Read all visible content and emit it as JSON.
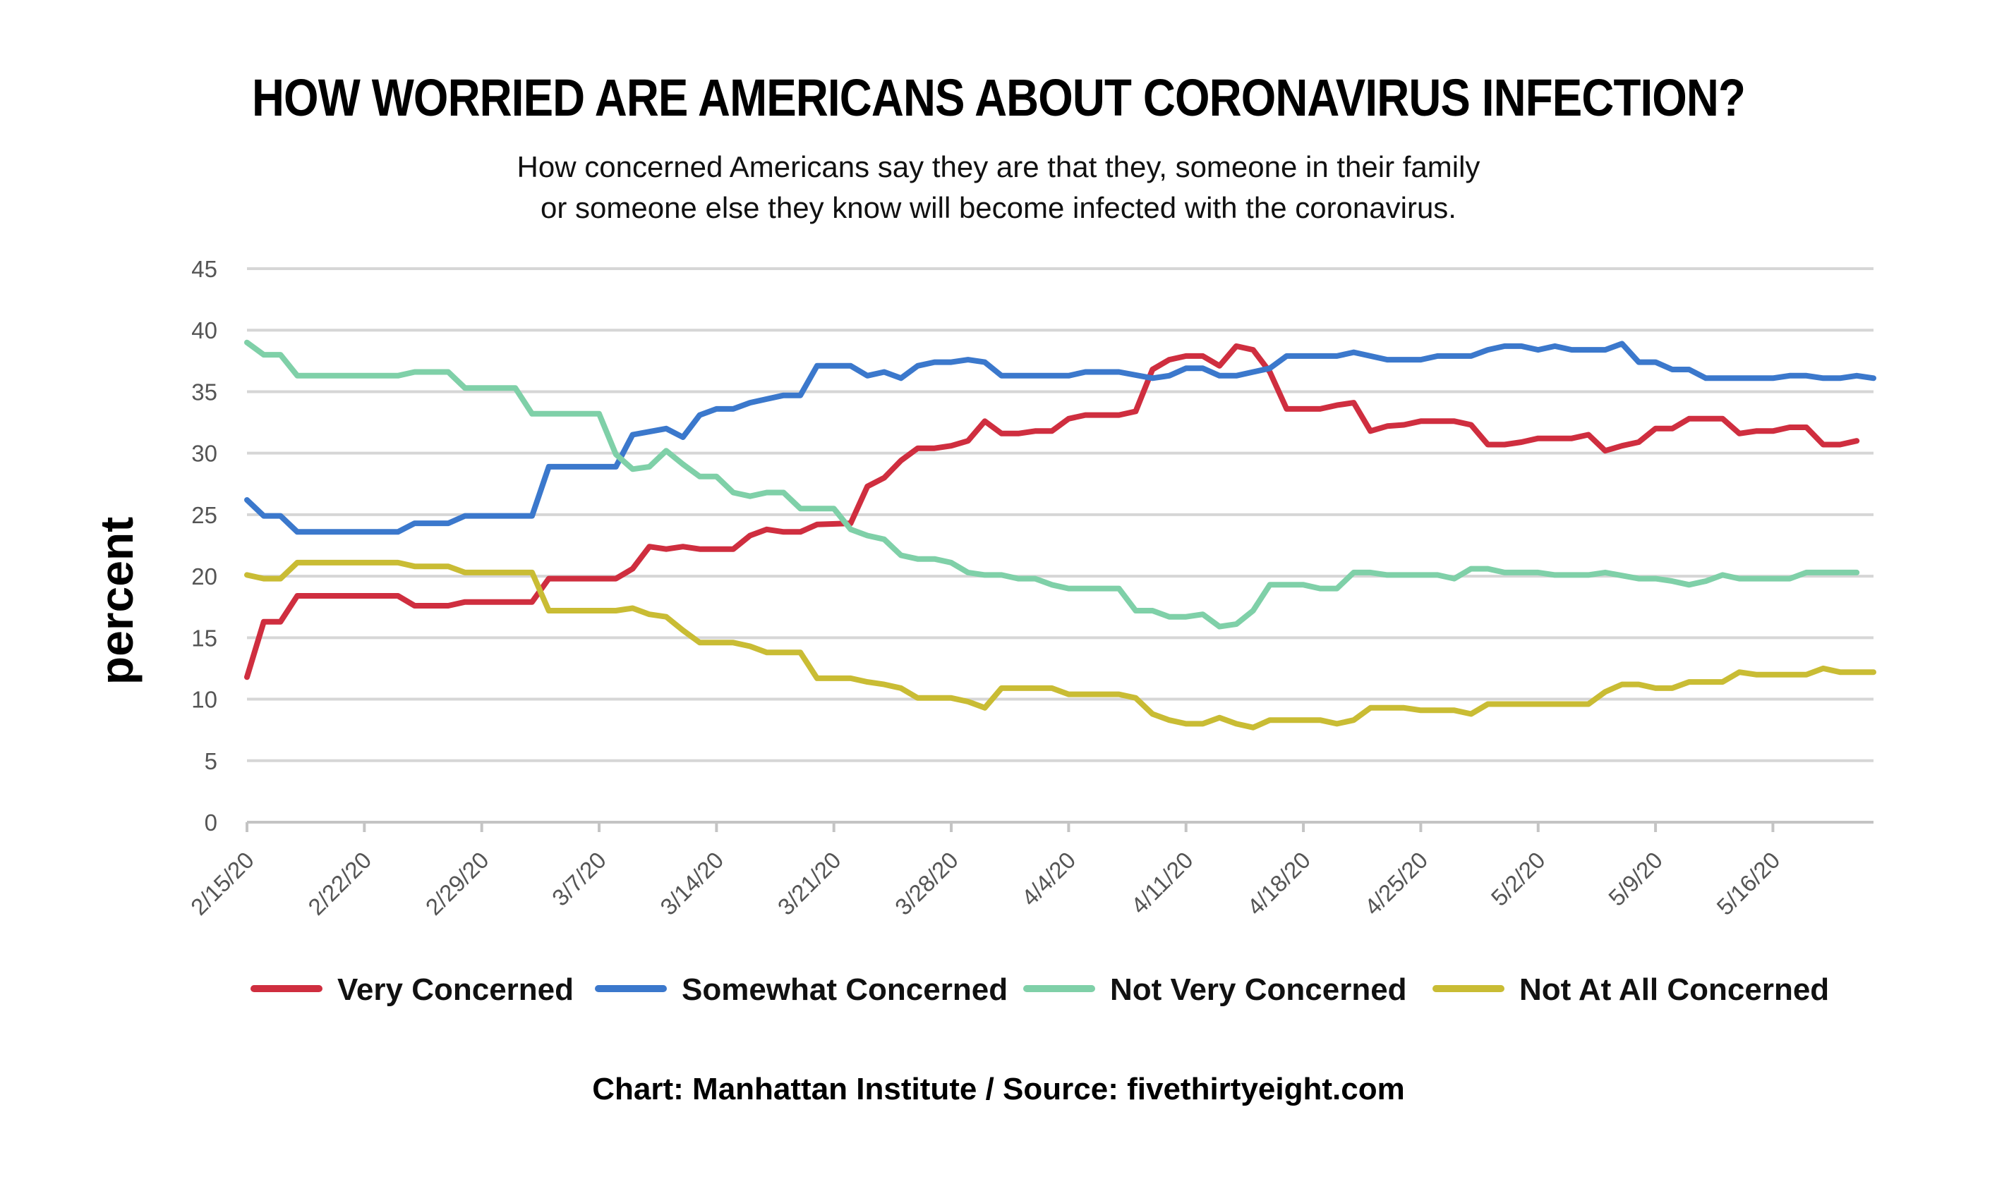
{
  "chart_data": {
    "type": "line",
    "title": "HOW WORRIED ARE AMERICANS ABOUT CORONAVIRUS INFECTION?",
    "subtitle_lines": [
      "How concerned Americans say they are that they, someone in their family",
      "or someone else they know will become infected with the coronavirus."
    ],
    "ylabel": "percent",
    "xlabel": "",
    "ylim": [
      0,
      45
    ],
    "yticks": [
      0,
      5,
      10,
      15,
      20,
      25,
      30,
      35,
      40,
      45
    ],
    "x_start": "2/15/20",
    "x_end": "5/22/20",
    "x_tick_labels": [
      "2/15/20",
      "2/22/20",
      "2/29/20",
      "3/7/20",
      "3/14/20",
      "3/21/20",
      "3/28/20",
      "4/4/20",
      "4/11/20",
      "4/18/20",
      "4/25/20",
      "5/2/20",
      "5/9/20",
      "5/16/20"
    ],
    "grid": true,
    "legend_position": "bottom",
    "source": "Chart: Manhattan Institute  /  Source: fivethirtyeight.com",
    "series": [
      {
        "name": "Very Concerned",
        "color": "#cf2e3f",
        "points": [
          [
            "2/15/20",
            11.8
          ],
          [
            "2/16/20",
            16.3
          ],
          [
            "2/17/20",
            16.3
          ],
          [
            "2/18/20",
            18.4
          ],
          [
            "2/19/20",
            18.4
          ],
          [
            "2/24/20",
            18.4
          ],
          [
            "2/25/20",
            17.6
          ],
          [
            "2/27/20",
            17.6
          ],
          [
            "2/28/20",
            17.9
          ],
          [
            "3/3/20",
            17.9
          ],
          [
            "3/4/20",
            19.8
          ],
          [
            "3/8/20",
            19.8
          ],
          [
            "3/9/20",
            20.6
          ],
          [
            "3/10/20",
            22.4
          ],
          [
            "3/11/20",
            22.2
          ],
          [
            "3/12/20",
            22.4
          ],
          [
            "3/13/20",
            22.2
          ],
          [
            "3/15/20",
            22.2
          ],
          [
            "3/16/20",
            23.3
          ],
          [
            "3/17/20",
            23.8
          ],
          [
            "3/18/20",
            23.6
          ],
          [
            "3/19/20",
            23.6
          ],
          [
            "3/20/20",
            24.2
          ],
          [
            "3/22/20",
            24.3
          ],
          [
            "3/23/20",
            27.3
          ],
          [
            "3/24/20",
            28.0
          ],
          [
            "3/25/20",
            29.4
          ],
          [
            "3/26/20",
            30.4
          ],
          [
            "3/27/20",
            30.4
          ],
          [
            "3/28/20",
            30.6
          ],
          [
            "3/29/20",
            31.0
          ],
          [
            "3/30/20",
            32.6
          ],
          [
            "3/31/20",
            31.6
          ],
          [
            "4/1/20",
            31.6
          ],
          [
            "4/2/20",
            31.8
          ],
          [
            "4/3/20",
            31.8
          ],
          [
            "4/4/20",
            32.8
          ],
          [
            "4/5/20",
            33.1
          ],
          [
            "4/7/20",
            33.1
          ],
          [
            "4/8/20",
            33.4
          ],
          [
            "4/9/20",
            36.8
          ],
          [
            "4/10/20",
            37.6
          ],
          [
            "4/11/20",
            37.9
          ],
          [
            "4/12/20",
            37.9
          ],
          [
            "4/13/20",
            37.1
          ],
          [
            "4/14/20",
            38.7
          ],
          [
            "4/15/20",
            38.4
          ],
          [
            "4/16/20",
            36.6
          ],
          [
            "4/17/20",
            33.6
          ],
          [
            "4/19/20",
            33.6
          ],
          [
            "4/20/20",
            33.9
          ],
          [
            "4/21/20",
            34.1
          ],
          [
            "4/22/20",
            31.8
          ],
          [
            "4/23/20",
            32.2
          ],
          [
            "4/24/20",
            32.3
          ],
          [
            "4/25/20",
            32.6
          ],
          [
            "4/27/20",
            32.6
          ],
          [
            "4/28/20",
            32.3
          ],
          [
            "4/29/20",
            30.7
          ],
          [
            "4/30/20",
            30.7
          ],
          [
            "5/1/20",
            30.9
          ],
          [
            "5/2/20",
            31.2
          ],
          [
            "5/4/20",
            31.2
          ],
          [
            "5/5/20",
            31.5
          ],
          [
            "5/6/20",
            30.2
          ],
          [
            "5/7/20",
            30.6
          ],
          [
            "5/8/20",
            30.9
          ],
          [
            "5/9/20",
            32.0
          ],
          [
            "5/10/20",
            32.0
          ],
          [
            "5/11/20",
            32.8
          ],
          [
            "5/13/20",
            32.8
          ],
          [
            "5/14/20",
            31.6
          ],
          [
            "5/15/20",
            31.8
          ],
          [
            "5/16/20",
            31.8
          ],
          [
            "5/17/20",
            32.1
          ],
          [
            "5/18/20",
            32.1
          ],
          [
            "5/19/20",
            30.7
          ],
          [
            "5/20/20",
            30.7
          ],
          [
            "5/21/20",
            31.0
          ]
        ]
      },
      {
        "name": "Somewhat Concerned",
        "color": "#3b78cc",
        "points": [
          [
            "2/15/20",
            26.2
          ],
          [
            "2/16/20",
            24.9
          ],
          [
            "2/17/20",
            24.9
          ],
          [
            "2/18/20",
            23.6
          ],
          [
            "2/24/20",
            23.6
          ],
          [
            "2/25/20",
            24.3
          ],
          [
            "2/27/20",
            24.3
          ],
          [
            "2/28/20",
            24.9
          ],
          [
            "3/3/20",
            24.9
          ],
          [
            "3/4/20",
            28.9
          ],
          [
            "3/8/20",
            28.9
          ],
          [
            "3/9/20",
            31.5
          ],
          [
            "3/11/20",
            32.0
          ],
          [
            "3/12/20",
            31.3
          ],
          [
            "3/13/20",
            33.1
          ],
          [
            "3/14/20",
            33.6
          ],
          [
            "3/15/20",
            33.6
          ],
          [
            "3/16/20",
            34.1
          ],
          [
            "3/17/20",
            34.4
          ],
          [
            "3/18/20",
            34.7
          ],
          [
            "3/19/20",
            34.7
          ],
          [
            "3/20/20",
            37.1
          ],
          [
            "3/22/20",
            37.1
          ],
          [
            "3/23/20",
            36.3
          ],
          [
            "3/24/20",
            36.6
          ],
          [
            "3/25/20",
            36.1
          ],
          [
            "3/26/20",
            37.1
          ],
          [
            "3/27/20",
            37.4
          ],
          [
            "3/28/20",
            37.4
          ],
          [
            "3/29/20",
            37.6
          ],
          [
            "3/30/20",
            37.4
          ],
          [
            "3/31/20",
            36.3
          ],
          [
            "4/4/20",
            36.3
          ],
          [
            "4/5/20",
            36.6
          ],
          [
            "4/7/20",
            36.6
          ],
          [
            "4/9/20",
            36.1
          ],
          [
            "4/10/20",
            36.3
          ],
          [
            "4/11/20",
            36.9
          ],
          [
            "4/12/20",
            36.9
          ],
          [
            "4/13/20",
            36.3
          ],
          [
            "4/14/20",
            36.3
          ],
          [
            "4/16/20",
            36.9
          ],
          [
            "4/17/20",
            37.9
          ],
          [
            "4/20/20",
            37.9
          ],
          [
            "4/21/20",
            38.2
          ],
          [
            "4/23/20",
            37.6
          ],
          [
            "4/25/20",
            37.6
          ],
          [
            "4/26/20",
            37.9
          ],
          [
            "4/28/20",
            37.9
          ],
          [
            "4/29/20",
            38.4
          ],
          [
            "4/30/20",
            38.7
          ],
          [
            "5/1/20",
            38.7
          ],
          [
            "5/2/20",
            38.4
          ],
          [
            "5/3/20",
            38.7
          ],
          [
            "5/4/20",
            38.4
          ],
          [
            "5/6/20",
            38.4
          ],
          [
            "5/7/20",
            38.9
          ],
          [
            "5/8/20",
            37.4
          ],
          [
            "5/9/20",
            37.4
          ],
          [
            "5/10/20",
            36.8
          ],
          [
            "5/11/20",
            36.8
          ],
          [
            "5/12/20",
            36.1
          ],
          [
            "5/16/20",
            36.1
          ],
          [
            "5/17/20",
            36.3
          ],
          [
            "5/18/20",
            36.3
          ],
          [
            "5/19/20",
            36.1
          ],
          [
            "5/20/20",
            36.1
          ],
          [
            "5/21/20",
            36.3
          ],
          [
            "5/22/20",
            36.1
          ]
        ]
      },
      {
        "name": "Not Very Concerned",
        "color": "#7fd0a8",
        "points": [
          [
            "2/15/20",
            39.0
          ],
          [
            "2/16/20",
            38.0
          ],
          [
            "2/17/20",
            38.0
          ],
          [
            "2/18/20",
            36.3
          ],
          [
            "2/24/20",
            36.3
          ],
          [
            "2/25/20",
            36.6
          ],
          [
            "2/27/20",
            36.6
          ],
          [
            "2/28/20",
            35.3
          ],
          [
            "3/2/20",
            35.3
          ],
          [
            "3/3/20",
            33.2
          ],
          [
            "3/7/20",
            33.2
          ],
          [
            "3/8/20",
            29.9
          ],
          [
            "3/9/20",
            28.7
          ],
          [
            "3/10/20",
            28.9
          ],
          [
            "3/11/20",
            30.2
          ],
          [
            "3/12/20",
            29.1
          ],
          [
            "3/13/20",
            28.1
          ],
          [
            "3/14/20",
            28.1
          ],
          [
            "3/15/20",
            26.8
          ],
          [
            "3/16/20",
            26.5
          ],
          [
            "3/17/20",
            26.8
          ],
          [
            "3/18/20",
            26.8
          ],
          [
            "3/19/20",
            25.5
          ],
          [
            "3/21/20",
            25.5
          ],
          [
            "3/22/20",
            23.8
          ],
          [
            "3/23/20",
            23.3
          ],
          [
            "3/24/20",
            23.0
          ],
          [
            "3/25/20",
            21.7
          ],
          [
            "3/26/20",
            21.4
          ],
          [
            "3/27/20",
            21.4
          ],
          [
            "3/28/20",
            21.1
          ],
          [
            "3/29/20",
            20.3
          ],
          [
            "3/30/20",
            20.1
          ],
          [
            "3/31/20",
            20.1
          ],
          [
            "4/1/20",
            19.8
          ],
          [
            "4/2/20",
            19.8
          ],
          [
            "4/3/20",
            19.3
          ],
          [
            "4/4/20",
            19.0
          ],
          [
            "4/7/20",
            19.0
          ],
          [
            "4/8/20",
            17.2
          ],
          [
            "4/9/20",
            17.2
          ],
          [
            "4/10/20",
            16.7
          ],
          [
            "4/11/20",
            16.7
          ],
          [
            "4/12/20",
            16.9
          ],
          [
            "4/13/20",
            15.9
          ],
          [
            "4/14/20",
            16.1
          ],
          [
            "4/15/20",
            17.2
          ],
          [
            "4/16/20",
            19.3
          ],
          [
            "4/18/20",
            19.3
          ],
          [
            "4/19/20",
            19.0
          ],
          [
            "4/20/20",
            19.0
          ],
          [
            "4/21/20",
            20.3
          ],
          [
            "4/22/20",
            20.3
          ],
          [
            "4/23/20",
            20.1
          ],
          [
            "4/26/20",
            20.1
          ],
          [
            "4/27/20",
            19.8
          ],
          [
            "4/28/20",
            20.6
          ],
          [
            "4/29/20",
            20.6
          ],
          [
            "4/30/20",
            20.3
          ],
          [
            "5/2/20",
            20.3
          ],
          [
            "5/3/20",
            20.1
          ],
          [
            "5/5/20",
            20.1
          ],
          [
            "5/6/20",
            20.3
          ],
          [
            "5/8/20",
            19.8
          ],
          [
            "5/9/20",
            19.8
          ],
          [
            "5/10/20",
            19.6
          ],
          [
            "5/11/20",
            19.3
          ],
          [
            "5/12/20",
            19.6
          ],
          [
            "5/13/20",
            20.1
          ],
          [
            "5/14/20",
            19.8
          ],
          [
            "5/17/20",
            19.8
          ],
          [
            "5/18/20",
            20.3
          ],
          [
            "5/21/20",
            20.3
          ]
        ]
      },
      {
        "name": "Not At All Concerned",
        "color": "#c9bc34",
        "points": [
          [
            "2/15/20",
            20.1
          ],
          [
            "2/16/20",
            19.8
          ],
          [
            "2/17/20",
            19.8
          ],
          [
            "2/18/20",
            21.1
          ],
          [
            "2/24/20",
            21.1
          ],
          [
            "2/25/20",
            20.8
          ],
          [
            "2/27/20",
            20.8
          ],
          [
            "2/28/20",
            20.3
          ],
          [
            "3/3/20",
            20.3
          ],
          [
            "3/4/20",
            17.2
          ],
          [
            "3/8/20",
            17.2
          ],
          [
            "3/9/20",
            17.4
          ],
          [
            "3/10/20",
            16.9
          ],
          [
            "3/11/20",
            16.7
          ],
          [
            "3/12/20",
            15.6
          ],
          [
            "3/13/20",
            14.6
          ],
          [
            "3/15/20",
            14.6
          ],
          [
            "3/16/20",
            14.3
          ],
          [
            "3/17/20",
            13.8
          ],
          [
            "3/19/20",
            13.8
          ],
          [
            "3/20/20",
            11.7
          ],
          [
            "3/22/20",
            11.7
          ],
          [
            "3/23/20",
            11.4
          ],
          [
            "3/24/20",
            11.2
          ],
          [
            "3/25/20",
            10.9
          ],
          [
            "3/26/20",
            10.1
          ],
          [
            "3/28/20",
            10.1
          ],
          [
            "3/29/20",
            9.8
          ],
          [
            "3/30/20",
            9.3
          ],
          [
            "3/31/20",
            10.9
          ],
          [
            "4/3/20",
            10.9
          ],
          [
            "4/4/20",
            10.4
          ],
          [
            "4/7/20",
            10.4
          ],
          [
            "4/8/20",
            10.1
          ],
          [
            "4/9/20",
            8.8
          ],
          [
            "4/10/20",
            8.3
          ],
          [
            "4/11/20",
            8.0
          ],
          [
            "4/12/20",
            8.0
          ],
          [
            "4/13/20",
            8.5
          ],
          [
            "4/14/20",
            8.0
          ],
          [
            "4/15/20",
            7.7
          ],
          [
            "4/16/20",
            8.3
          ],
          [
            "4/19/20",
            8.3
          ],
          [
            "4/20/20",
            8.0
          ],
          [
            "4/21/20",
            8.3
          ],
          [
            "4/22/20",
            9.3
          ],
          [
            "4/24/20",
            9.3
          ],
          [
            "4/25/20",
            9.1
          ],
          [
            "4/27/20",
            9.1
          ],
          [
            "4/28/20",
            8.8
          ],
          [
            "4/29/20",
            9.6
          ],
          [
            "5/5/20",
            9.6
          ],
          [
            "5/6/20",
            10.6
          ],
          [
            "5/7/20",
            11.2
          ],
          [
            "5/8/20",
            11.2
          ],
          [
            "5/9/20",
            10.9
          ],
          [
            "5/10/20",
            10.9
          ],
          [
            "5/11/20",
            11.4
          ],
          [
            "5/13/20",
            11.4
          ],
          [
            "5/14/20",
            12.2
          ],
          [
            "5/15/20",
            12.0
          ],
          [
            "5/18/20",
            12.0
          ],
          [
            "5/19/20",
            12.5
          ],
          [
            "5/20/20",
            12.2
          ],
          [
            "5/22/20",
            12.2
          ]
        ]
      }
    ]
  }
}
